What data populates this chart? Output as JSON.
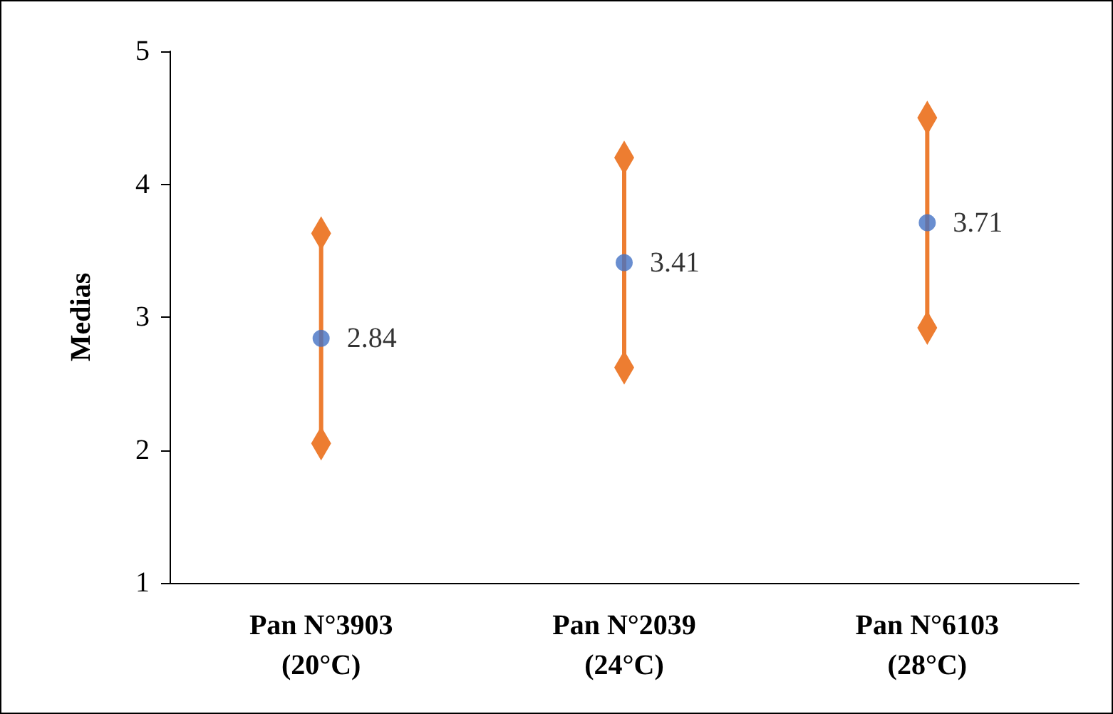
{
  "chart_data": {
    "type": "scatter",
    "ylabel": "Medias",
    "categories": [
      "Pan N°3903\n(20°C)",
      "Pan N°2039\n(24°C)",
      "Pan N°6103\n(28°C)"
    ],
    "series": [
      {
        "color": "#4472c4",
        "values": [
          2.84,
          3.41,
          3.71
        ],
        "errors": [
          0.79,
          0.79,
          0.79
        ]
      }
    ],
    "ylim": [
      1,
      5
    ],
    "yticks": [
      1,
      2,
      3,
      4,
      5
    ],
    "grid": false,
    "marker": "circle",
    "data_labels": true
  }
}
